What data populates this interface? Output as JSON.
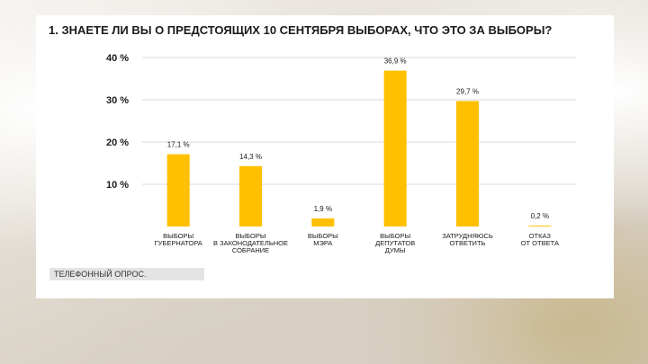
{
  "title": "1.  ЗНАЕТЕ ЛИ ВЫ О ПРЕДСТОЯЩИХ 10 СЕНТЯБРЯ ВЫБОРАХ, ЧТО ЭТО ЗА ВЫБОРЫ?",
  "footnote": "ТЕЛЕФОННЫЙ ОПРОС.",
  "colors": {
    "bar": "#ffc000",
    "grid": "#d9d9d9",
    "text": "#1a1a1a"
  },
  "chart_data": {
    "type": "bar",
    "title": "1.  ЗНАЕТЕ ЛИ ВЫ О ПРЕДСТОЯЩИХ 10 СЕНТЯБРЯ ВЫБОРАХ, ЧТО ЭТО ЗА ВЫБОРЫ?",
    "categories": [
      [
        "ВЫБОРЫ",
        "ГУБЕРНАТОРА"
      ],
      [
        "ВЫБОРЫ",
        "В ЗАКОНОДАТЕЛЬНОЕ",
        "СОБРАНИЕ"
      ],
      [
        "ВЫБОРЫ",
        "МЭРА"
      ],
      [
        "ВЫБОРЫ",
        "ДЕПУТАТОВ",
        "ДУМЫ"
      ],
      [
        "ЗАТРУДНЯЮСЬ",
        "ОТВЕТИТЬ"
      ],
      [
        "ОТКАЗ",
        "ОТ ОТВЕТА"
      ]
    ],
    "values": [
      17.1,
      14.3,
      1.9,
      36.9,
      29.7,
      0.2
    ],
    "value_labels": [
      "17,1 %",
      "14,3 %",
      "1,9 %",
      "36,9 %",
      "29,7 %",
      "0,2 %"
    ],
    "yticks": [
      10,
      20,
      30,
      40
    ],
    "ytick_labels": [
      "10 %",
      "20 %",
      "30 %",
      "40 %"
    ],
    "ylim": [
      0,
      40
    ],
    "grid": true,
    "legend": false
  }
}
